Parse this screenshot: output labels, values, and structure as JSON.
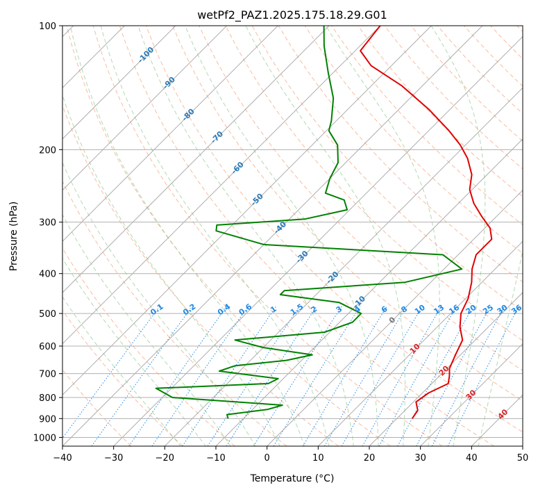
{
  "chart_data": {
    "type": "line",
    "subtype": "skew-T log-p diagram",
    "title": "wetPf2_PAZ1.2025.175.18.29.G01",
    "xlabel": "Temperature (°C)",
    "ylabel": "Pressure (hPa)",
    "xlim": [
      -40,
      50
    ],
    "ylim": [
      1050,
      100
    ],
    "yscale": "log",
    "x_ticks": [
      -40,
      -30,
      -20,
      -10,
      0,
      10,
      20,
      30,
      40,
      50
    ],
    "y_ticks": [
      100,
      200,
      300,
      400,
      500,
      600,
      700,
      800,
      900,
      1000
    ],
    "grid": true,
    "series": [
      {
        "color": "#e00000",
        "kind": "temperature",
        "points": [
          [
            23.0,
            900
          ],
          [
            22.5,
            860
          ],
          [
            20.5,
            820
          ],
          [
            21.2,
            780
          ],
          [
            23.2,
            740
          ],
          [
            22.0,
            710
          ],
          [
            20.5,
            680
          ],
          [
            19.0,
            630
          ],
          [
            17.5,
            580
          ],
          [
            14.5,
            540
          ],
          [
            12.0,
            500
          ],
          [
            10.5,
            460
          ],
          [
            8.0,
            420
          ],
          [
            5.5,
            390
          ],
          [
            3.5,
            360
          ],
          [
            3.5,
            330
          ],
          [
            1.0,
            310
          ],
          [
            -3.0,
            290
          ],
          [
            -7.0,
            270
          ],
          [
            -10.5,
            250
          ],
          [
            -13.0,
            230
          ],
          [
            -17.0,
            210
          ],
          [
            -21.0,
            195
          ],
          [
            -26.0,
            180
          ],
          [
            -34.0,
            160
          ],
          [
            -44.0,
            140
          ],
          [
            -54.0,
            125
          ],
          [
            -59.0,
            115
          ],
          [
            -60.0,
            100
          ]
        ]
      },
      {
        "color": "#008000",
        "kind": "dewpoint",
        "points": [
          [
            -13.0,
            900
          ],
          [
            -14.0,
            880
          ],
          [
            -7.0,
            855
          ],
          [
            -5.0,
            835
          ],
          [
            -28.0,
            800
          ],
          [
            -33.0,
            760
          ],
          [
            -12.0,
            740
          ],
          [
            -11.0,
            720
          ],
          [
            -24.0,
            690
          ],
          [
            -22.0,
            670
          ],
          [
            -13.0,
            650
          ],
          [
            -9.0,
            630
          ],
          [
            -20.0,
            605
          ],
          [
            -27.0,
            580
          ],
          [
            -11.0,
            555
          ],
          [
            -7.5,
            525
          ],
          [
            -7.5,
            500
          ],
          [
            -14.0,
            470
          ],
          [
            -27.0,
            450
          ],
          [
            -27.0,
            440
          ],
          [
            -5.0,
            420
          ],
          [
            3.5,
            390
          ],
          [
            -3.0,
            360
          ],
          [
            -40.0,
            340
          ],
          [
            -52.0,
            315
          ],
          [
            -53.0,
            305
          ],
          [
            -37.0,
            295
          ],
          [
            -30.5,
            280
          ],
          [
            -33.0,
            265
          ],
          [
            -38.0,
            255
          ],
          [
            -40.0,
            235
          ],
          [
            -41.5,
            215
          ],
          [
            -45.0,
            195
          ],
          [
            -49.5,
            180
          ],
          [
            -51.0,
            170
          ],
          [
            -55.0,
            150
          ],
          [
            -61.0,
            130
          ],
          [
            -67.0,
            112
          ],
          [
            -71.0,
            100
          ]
        ]
      }
    ],
    "isotherm_labels": [
      "-100",
      "-90",
      "-80",
      "-70",
      "-60",
      "-50",
      "-40",
      "-30",
      "-20",
      "-10",
      "0",
      "10",
      "20",
      "30",
      "40"
    ],
    "mixing_ratio_labels": [
      "0.1",
      "0.2",
      "0.4",
      "0.6",
      "1",
      "1.5",
      "2",
      "3",
      "4",
      "6",
      "8",
      "10",
      "13",
      "16",
      "20",
      "25",
      "30",
      "36"
    ]
  },
  "colors": {
    "temperature": "#e00000",
    "dewpoint": "#008000",
    "dry_adiabat": "#f4a582",
    "moist_adiabat": "#8fc98f",
    "mixing_ratio": "#1e88e5",
    "isotherm": "#999999"
  }
}
